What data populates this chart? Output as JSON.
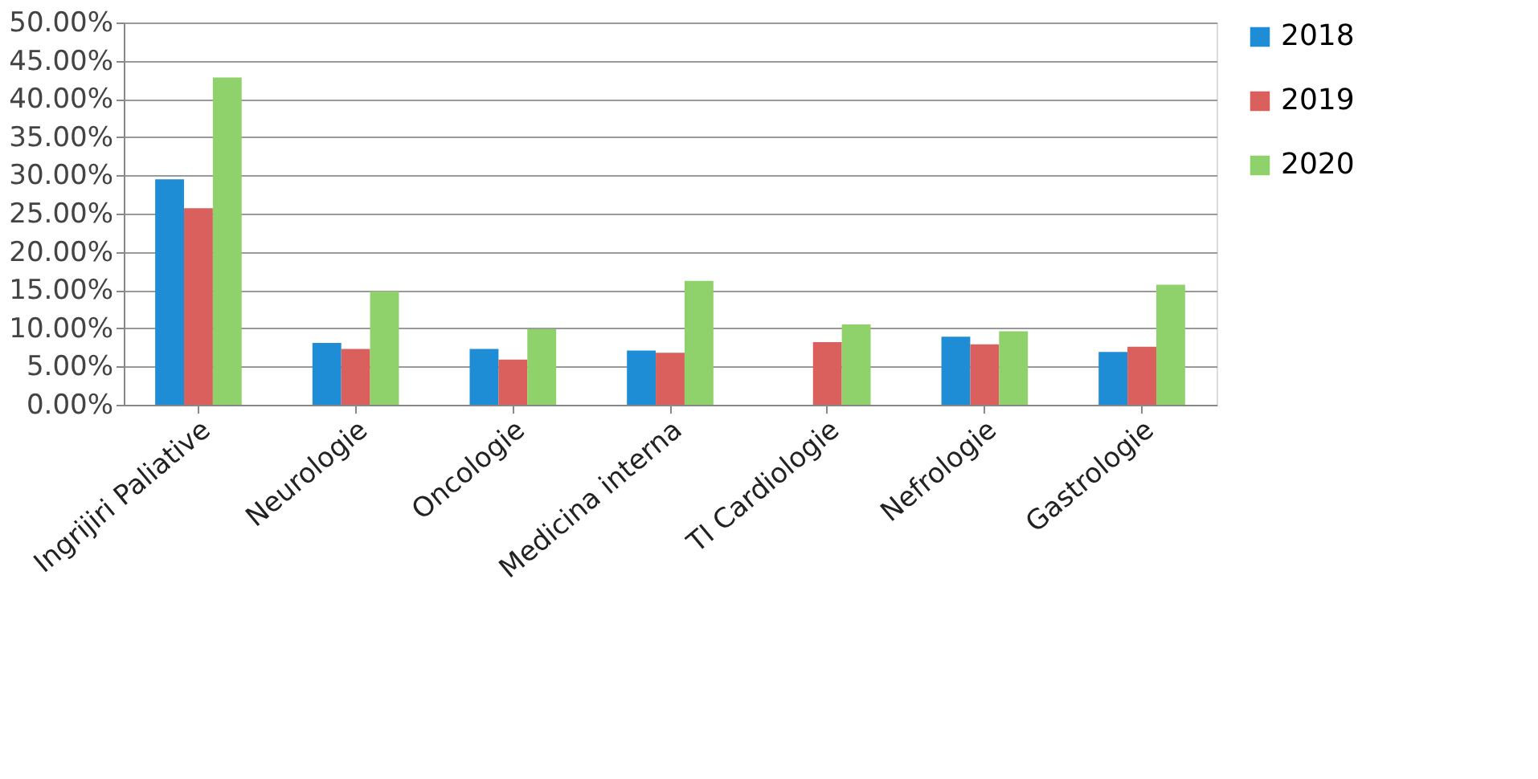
{
  "chart_data": {
    "type": "bar",
    "categories": [
      "Ingrijiri Paliative",
      "Neurologie",
      "Oncologie",
      "Medicina interna",
      "TI Cardiologie",
      "Nefrologie",
      "Gastrologie"
    ],
    "series": [
      {
        "name": "2018",
        "color": "#1f8dd6",
        "values": [
          29.5,
          8.1,
          7.3,
          7.1,
          null,
          8.9,
          6.9
        ]
      },
      {
        "name": "2019",
        "color": "#d9605d",
        "values": [
          25.7,
          7.3,
          5.9,
          6.8,
          8.2,
          7.9,
          7.6
        ]
      },
      {
        "name": "2020",
        "color": "#8fd16a",
        "values": [
          42.8,
          14.8,
          9.9,
          16.2,
          10.5,
          9.6,
          15.7
        ]
      }
    ],
    "ylim": [
      0,
      50
    ],
    "yticks": [
      {
        "value": 0,
        "label": "0.00%"
      },
      {
        "value": 5,
        "label": "5.00%"
      },
      {
        "value": 10,
        "label": "10.00%"
      },
      {
        "value": 15,
        "label": "15.00%"
      },
      {
        "value": 20,
        "label": "20.00%"
      },
      {
        "value": 25,
        "label": "25.00%"
      },
      {
        "value": 30,
        "label": "30.00%"
      },
      {
        "value": 35,
        "label": "35.00%"
      },
      {
        "value": 40,
        "label": "40.00%"
      },
      {
        "value": 45,
        "label": "45.00%"
      },
      {
        "value": 50,
        "label": "50.00%"
      }
    ],
    "grid": "y",
    "legend": "right"
  }
}
